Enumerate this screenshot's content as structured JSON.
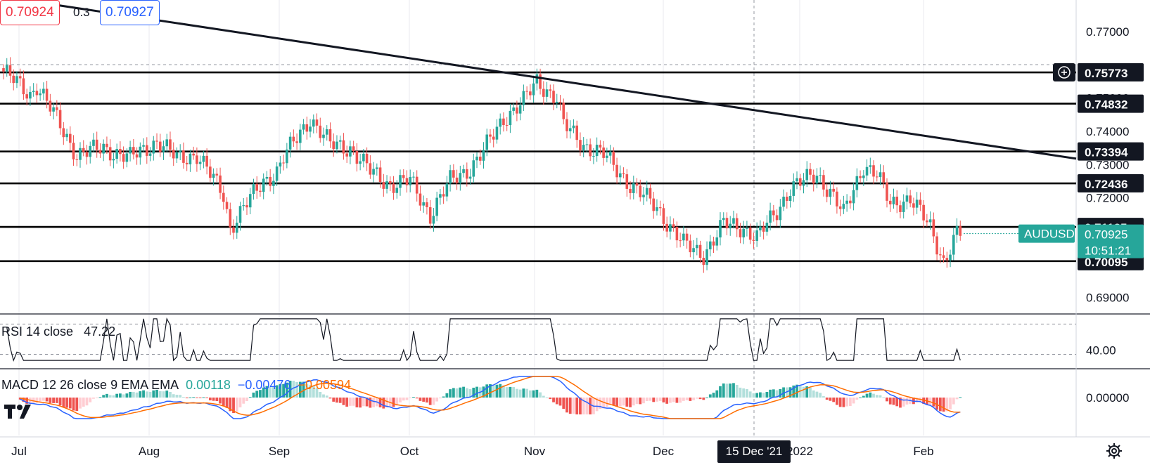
{
  "header": {
    "bid": "0.70924",
    "spread": "0.3",
    "ask": "0.70927"
  },
  "symbol_label": "AUDUSD",
  "last_price": "0.70925",
  "countdown": "10:51:21",
  "crosshair_date": "15 Dec '21",
  "rsi_legend": {
    "name": "RSI 14 close",
    "value": "47.22"
  },
  "macd_legend": {
    "name": "MACD 12 26 close 9 EMA EMA",
    "histogram": "0.00118",
    "macd": "−0.00476",
    "signal": "−0.00594"
  },
  "colors": {
    "up": "#26a69a",
    "down": "#ef5350",
    "line": "#000000",
    "macd": "#2962ff",
    "signal": "#ff6d00",
    "hist_up_strong": "#26a69a",
    "hist_up_weak": "#b2dfdb",
    "hist_down_strong": "#ef5350",
    "hist_down_weak": "#ffcdd2",
    "bid": "#f23645",
    "ask": "#2962ff"
  },
  "icons": [
    "tradingview-logo-icon",
    "plus-circle-icon",
    "settings-gear-icon"
  ],
  "chart_data": [
    {
      "type": "candlestick",
      "symbol": "AUDUSD",
      "y_axis": {
        "ticks": [
          "0.77000",
          "0.75000",
          "0.74000",
          "0.73000",
          "0.72000",
          "0.69000"
        ],
        "range": [
          0.6855,
          0.7795
        ]
      },
      "x_axis": {
        "ticks": [
          "Jul",
          "Aug",
          "Sep",
          "Oct",
          "Nov",
          "Dec",
          "2022",
          "Feb"
        ]
      },
      "horizontal_levels": [
        "0.75773",
        "0.74832",
        "0.73394",
        "0.72436",
        "0.71125",
        "0.70095"
      ],
      "trendline": {
        "from": [
          "Jun 2021",
          0.778
        ],
        "to": [
          "Feb 2022",
          0.7344
        ]
      },
      "series_shape": {
        "first_close": 0.758,
        "last_close": 0.70925,
        "high": 0.7598,
        "low": 0.6988,
        "path": [
          [
            0,
            0.758
          ],
          [
            8,
            0.751
          ],
          [
            10,
            0.754
          ],
          [
            22,
            0.733
          ],
          [
            30,
            0.735
          ],
          [
            38,
            0.732
          ],
          [
            46,
            0.737
          ],
          [
            52,
            0.732
          ],
          [
            58,
            0.733
          ],
          [
            66,
            0.721
          ],
          [
            68,
            0.711
          ],
          [
            72,
            0.717
          ],
          [
            78,
            0.725
          ],
          [
            82,
            0.728
          ],
          [
            84,
            0.732
          ],
          [
            92,
            0.744
          ],
          [
            98,
            0.736
          ],
          [
            104,
            0.735
          ],
          [
            110,
            0.728
          ],
          [
            116,
            0.724
          ],
          [
            122,
            0.725
          ],
          [
            128,
            0.715
          ],
          [
            134,
            0.725
          ],
          [
            140,
            0.729
          ],
          [
            144,
            0.734
          ],
          [
            150,
            0.744
          ],
          [
            156,
            0.749
          ],
          [
            160,
            0.755
          ],
          [
            166,
            0.75
          ],
          [
            168,
            0.742
          ],
          [
            174,
            0.736
          ],
          [
            180,
            0.733
          ],
          [
            188,
            0.724
          ],
          [
            196,
            0.717
          ],
          [
            204,
            0.706
          ],
          [
            210,
            0.703
          ],
          [
            216,
            0.712
          ],
          [
            222,
            0.711
          ],
          [
            226,
            0.708
          ],
          [
            232,
            0.716
          ],
          [
            236,
            0.723
          ],
          [
            240,
            0.725
          ],
          [
            244,
            0.727
          ],
          [
            248,
            0.722
          ],
          [
            252,
            0.715
          ],
          [
            258,
            0.73
          ],
          [
            262,
            0.727
          ],
          [
            266,
            0.718
          ],
          [
            272,
            0.72
          ],
          [
            278,
            0.711
          ],
          [
            282,
            0.701
          ],
          [
            286,
            0.7092
          ]
        ]
      },
      "price_labels": [
        "0.75773",
        "0.74832",
        "0.73394",
        "0.72436",
        "0.71125",
        "0.70095"
      ]
    },
    {
      "type": "line",
      "name": "RSI 14 close",
      "y_axis": {
        "ticks": [
          "40.00"
        ]
      },
      "last_value": 47.22
    },
    {
      "type": "macd",
      "name": "MACD 12 26 close 9 EMA EMA",
      "y_axis": {
        "ticks": [
          "0.00000"
        ]
      },
      "histogram_last": 0.00118,
      "macd_last": -0.00476,
      "signal_last": -0.00594
    }
  ]
}
